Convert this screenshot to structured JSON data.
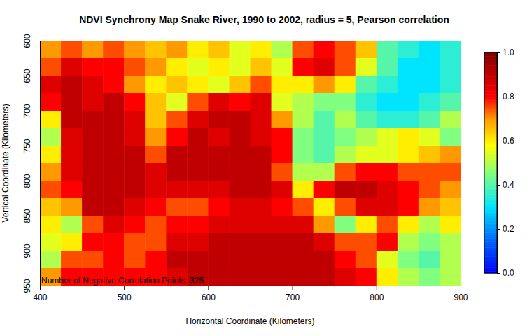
{
  "chart_data": {
    "type": "heatmap",
    "title": "NDVI Synchrony Map Snake River, 1990 to 2002, radius = 5, Pearson correlation",
    "x_label": "Horizontal Coordinate (Kilometers)",
    "y_label": "Vertical Coordinate (Kilometers)",
    "annotations": [
      "Number of Negative Correlation Points: 325"
    ],
    "x": [
      412.5,
      437.5,
      462.5,
      487.5,
      512.5,
      537.5,
      562.5,
      587.5,
      612.5,
      637.5,
      662.5,
      687.5,
      712.5,
      737.5,
      762.5,
      787.5,
      812.5,
      837.5,
      862.5,
      887.5
    ],
    "y": [
      612.5,
      637.5,
      662.5,
      687.5,
      712.5,
      737.5,
      762.5,
      787.5,
      812.5,
      837.5,
      862.5,
      887.5,
      912.5,
      937.5
    ],
    "values": [
      [
        0.7,
        0.75,
        0.7,
        0.75,
        0.7,
        0.65,
        0.7,
        0.6,
        0.65,
        0.55,
        0.6,
        0.5,
        0.75,
        0.8,
        0.75,
        0.65,
        0.4,
        0.35,
        0.3,
        0.35
      ],
      [
        0.75,
        0.85,
        0.8,
        0.8,
        0.75,
        0.7,
        0.6,
        0.55,
        0.6,
        0.55,
        0.65,
        0.55,
        0.8,
        0.85,
        0.75,
        0.55,
        0.4,
        0.3,
        0.3,
        0.35
      ],
      [
        0.85,
        0.9,
        0.85,
        0.8,
        0.7,
        0.6,
        0.65,
        0.6,
        0.55,
        0.65,
        0.75,
        0.6,
        0.6,
        0.7,
        0.6,
        0.4,
        0.35,
        0.3,
        0.3,
        0.35
      ],
      [
        0.8,
        0.9,
        0.85,
        0.9,
        0.8,
        0.65,
        0.55,
        0.75,
        0.85,
        0.8,
        0.85,
        0.55,
        0.5,
        0.45,
        0.45,
        0.35,
        0.3,
        0.3,
        0.35,
        0.4
      ],
      [
        0.6,
        0.9,
        0.9,
        0.9,
        0.85,
        0.65,
        0.75,
        0.85,
        0.9,
        0.9,
        0.85,
        0.7,
        0.5,
        0.4,
        0.5,
        0.4,
        0.35,
        0.35,
        0.4,
        0.5
      ],
      [
        0.5,
        0.85,
        0.9,
        0.9,
        0.85,
        0.7,
        0.8,
        0.9,
        0.85,
        0.9,
        0.85,
        0.8,
        0.45,
        0.4,
        0.45,
        0.5,
        0.55,
        0.6,
        0.55,
        0.45
      ],
      [
        0.6,
        0.85,
        0.9,
        0.9,
        0.9,
        0.75,
        0.9,
        0.9,
        0.9,
        0.9,
        0.9,
        0.8,
        0.45,
        0.4,
        0.5,
        0.55,
        0.55,
        0.6,
        0.65,
        0.7
      ],
      [
        0.7,
        0.85,
        0.9,
        0.9,
        0.9,
        0.85,
        0.9,
        0.9,
        0.9,
        0.9,
        0.9,
        0.75,
        0.5,
        0.5,
        0.75,
        0.8,
        0.8,
        0.75,
        0.75,
        0.75
      ],
      [
        0.75,
        0.8,
        0.9,
        0.9,
        0.9,
        0.85,
        0.85,
        0.85,
        0.85,
        0.9,
        0.9,
        0.85,
        0.6,
        0.8,
        0.9,
        0.9,
        0.85,
        0.8,
        0.75,
        0.7
      ],
      [
        0.65,
        0.7,
        0.9,
        0.9,
        0.85,
        0.8,
        0.75,
        0.75,
        0.8,
        0.85,
        0.85,
        0.8,
        0.75,
        0.6,
        0.75,
        0.85,
        0.85,
        0.8,
        0.7,
        0.65
      ],
      [
        0.6,
        0.5,
        0.75,
        0.85,
        0.8,
        0.75,
        0.8,
        0.8,
        0.85,
        0.85,
        0.85,
        0.85,
        0.85,
        0.7,
        0.45,
        0.6,
        0.75,
        0.6,
        0.5,
        0.6
      ],
      [
        0.55,
        0.6,
        0.8,
        0.8,
        0.75,
        0.75,
        0.85,
        0.85,
        0.9,
        0.9,
        0.9,
        0.9,
        0.9,
        0.85,
        0.75,
        0.75,
        0.8,
        0.5,
        0.45,
        0.5
      ],
      [
        0.5,
        0.75,
        0.75,
        0.8,
        0.75,
        0.8,
        0.9,
        0.9,
        0.9,
        0.9,
        0.9,
        0.9,
        0.9,
        0.9,
        0.8,
        0.75,
        0.55,
        0.45,
        0.4,
        0.5
      ],
      [
        0.7,
        0.8,
        0.8,
        0.8,
        0.8,
        0.8,
        0.85,
        0.9,
        0.9,
        0.9,
        0.9,
        0.9,
        0.9,
        0.9,
        0.85,
        0.8,
        0.6,
        0.5,
        0.45,
        0.5
      ]
    ],
    "xlim": [
      400,
      900
    ],
    "xticks": [
      400,
      500,
      600,
      700,
      800,
      900
    ],
    "ylim": [
      600,
      950
    ],
    "yticks": [
      600,
      650,
      700,
      750,
      800,
      850,
      900,
      950
    ],
    "colorbar_lim": [
      0,
      1
    ],
    "colorbar_ticks": [
      {
        "value": 0,
        "label": "0.0"
      },
      {
        "value": 0.2,
        "label": "0.2"
      },
      {
        "value": 0.4,
        "label": "0.4"
      },
      {
        "value": 0.6,
        "label": "0.6"
      },
      {
        "value": 0.8,
        "label": "0.8"
      },
      {
        "value": 1,
        "label": "1.0"
      }
    ]
  }
}
